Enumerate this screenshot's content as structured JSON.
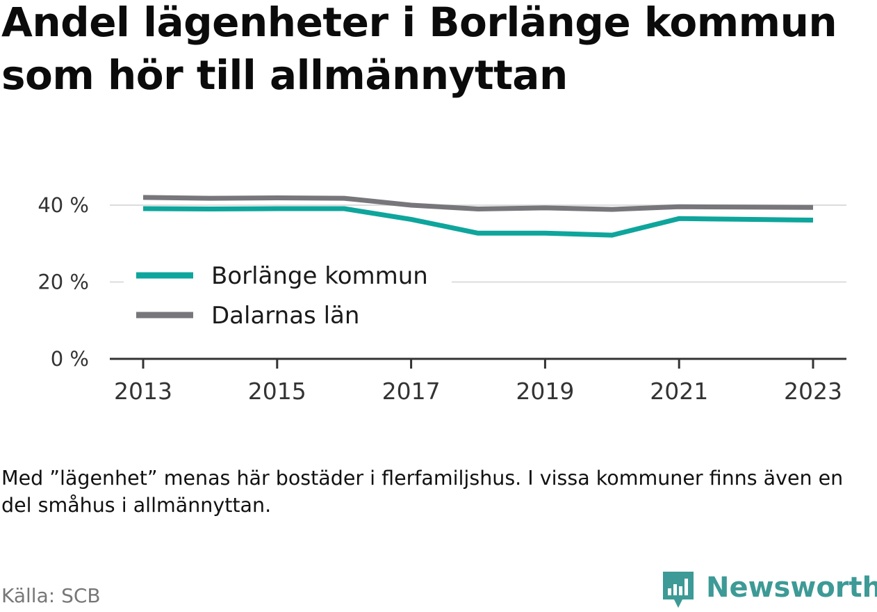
{
  "title": "Andel lägenheter i Borlänge kommun som hör till allmännyttan",
  "note": "Med ”lägenhet” menas här bostäder i flerfamiljshus. I vissa kommuner finns även en del småhus i allmännyttan.",
  "source": "Källa: SCB",
  "brand": {
    "name": "Newsworthy",
    "icon": "newsworthy-logo-icon",
    "color": "#3d9a96"
  },
  "chart_data": {
    "type": "line",
    "title": "Andel lägenheter i Borlänge kommun som hör till allmännyttan",
    "x": [
      2013,
      2014,
      2015,
      2016,
      2017,
      2018,
      2019,
      2020,
      2021,
      2022,
      2023
    ],
    "x_ticks": [
      "2013",
      "2015",
      "2017",
      "2019",
      "2021",
      "2023"
    ],
    "y_ticks": [
      "0 %",
      "20 %",
      "40 %"
    ],
    "ylim": [
      0,
      50
    ],
    "grid": "horizontal",
    "legend_position": "center-left",
    "series": [
      {
        "name": "Borlänge kommun",
        "color": "#0ea59c",
        "values": [
          39.1,
          39.0,
          39.1,
          39.1,
          36.3,
          32.7,
          32.7,
          32.2,
          36.5,
          36.3,
          36.1
        ]
      },
      {
        "name": "Dalarnas län",
        "color": "#77767b",
        "values": [
          42.0,
          41.8,
          41.9,
          41.8,
          40.0,
          39.0,
          39.3,
          38.9,
          39.6,
          39.5,
          39.4
        ]
      }
    ]
  }
}
